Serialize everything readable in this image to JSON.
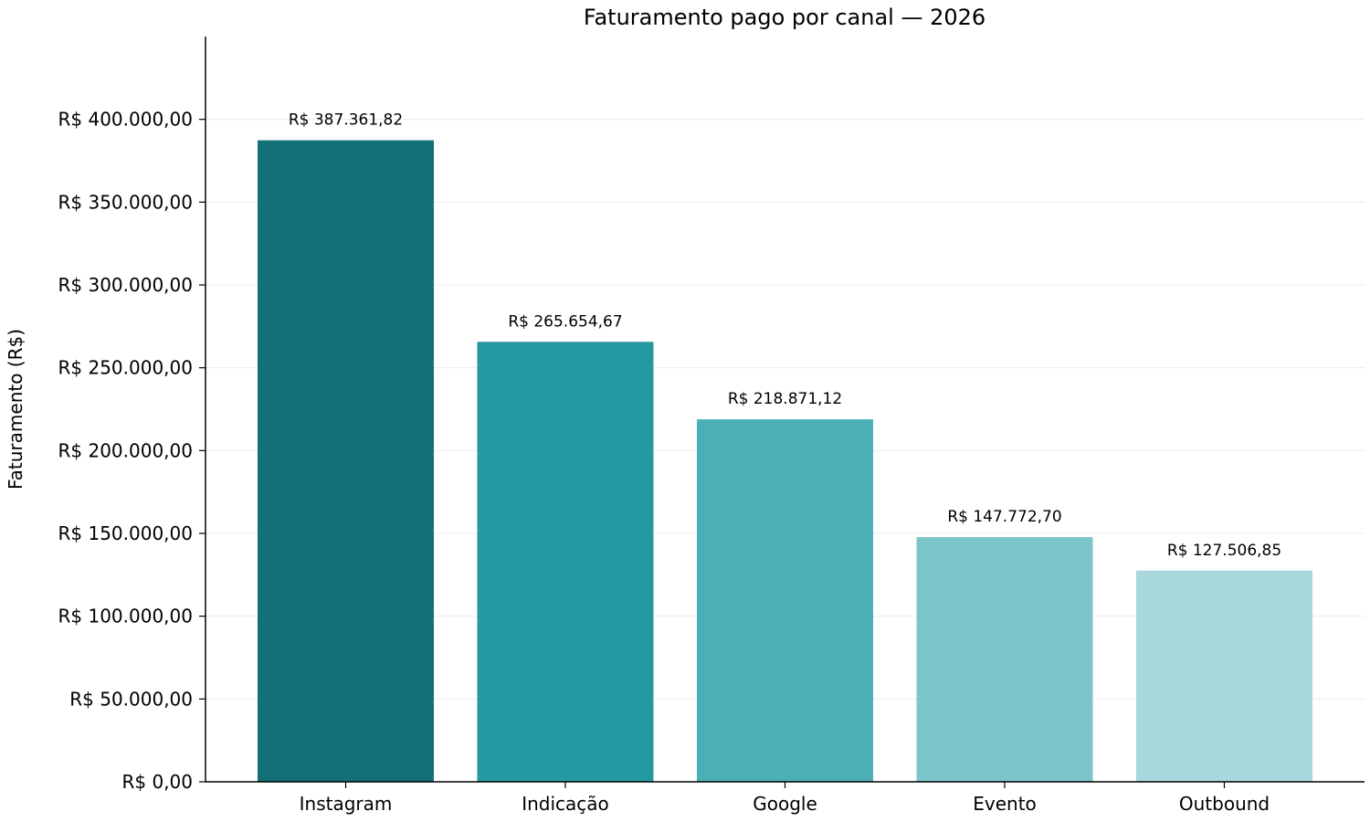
{
  "chart_data": {
    "type": "bar",
    "title": "Faturamento pago por canal — 2026",
    "xlabel": "",
    "ylabel": "Faturamento (R$)",
    "categories": [
      "Instagram",
      "Indicação",
      "Google",
      "Evento",
      "Outbound"
    ],
    "values": [
      387361.82,
      265654.67,
      218871.12,
      147772.7,
      127506.85
    ],
    "data_labels": [
      "R$ 387.361,82",
      "R$ 265.654,67",
      "R$ 218.871,12",
      "R$ 147.772,70",
      "R$ 127.506,85"
    ],
    "bar_colors": [
      "#137076",
      "#239aa1",
      "#4aafb6",
      "#7cc5c9",
      "#a8d8db"
    ],
    "ylim": [
      0,
      450000
    ],
    "yticks": [
      0,
      50000,
      100000,
      150000,
      200000,
      250000,
      300000,
      350000,
      400000
    ],
    "ytick_labels": [
      "R$ 0,00",
      "R$ 50.000,00",
      "R$ 100.000,00",
      "R$ 150.000,00",
      "R$ 200.000,00",
      "R$ 250.000,00",
      "R$ 300.000,00",
      "R$ 350.000,00",
      "R$ 400.000,00"
    ],
    "grid": "horizontal",
    "legend": "none"
  }
}
